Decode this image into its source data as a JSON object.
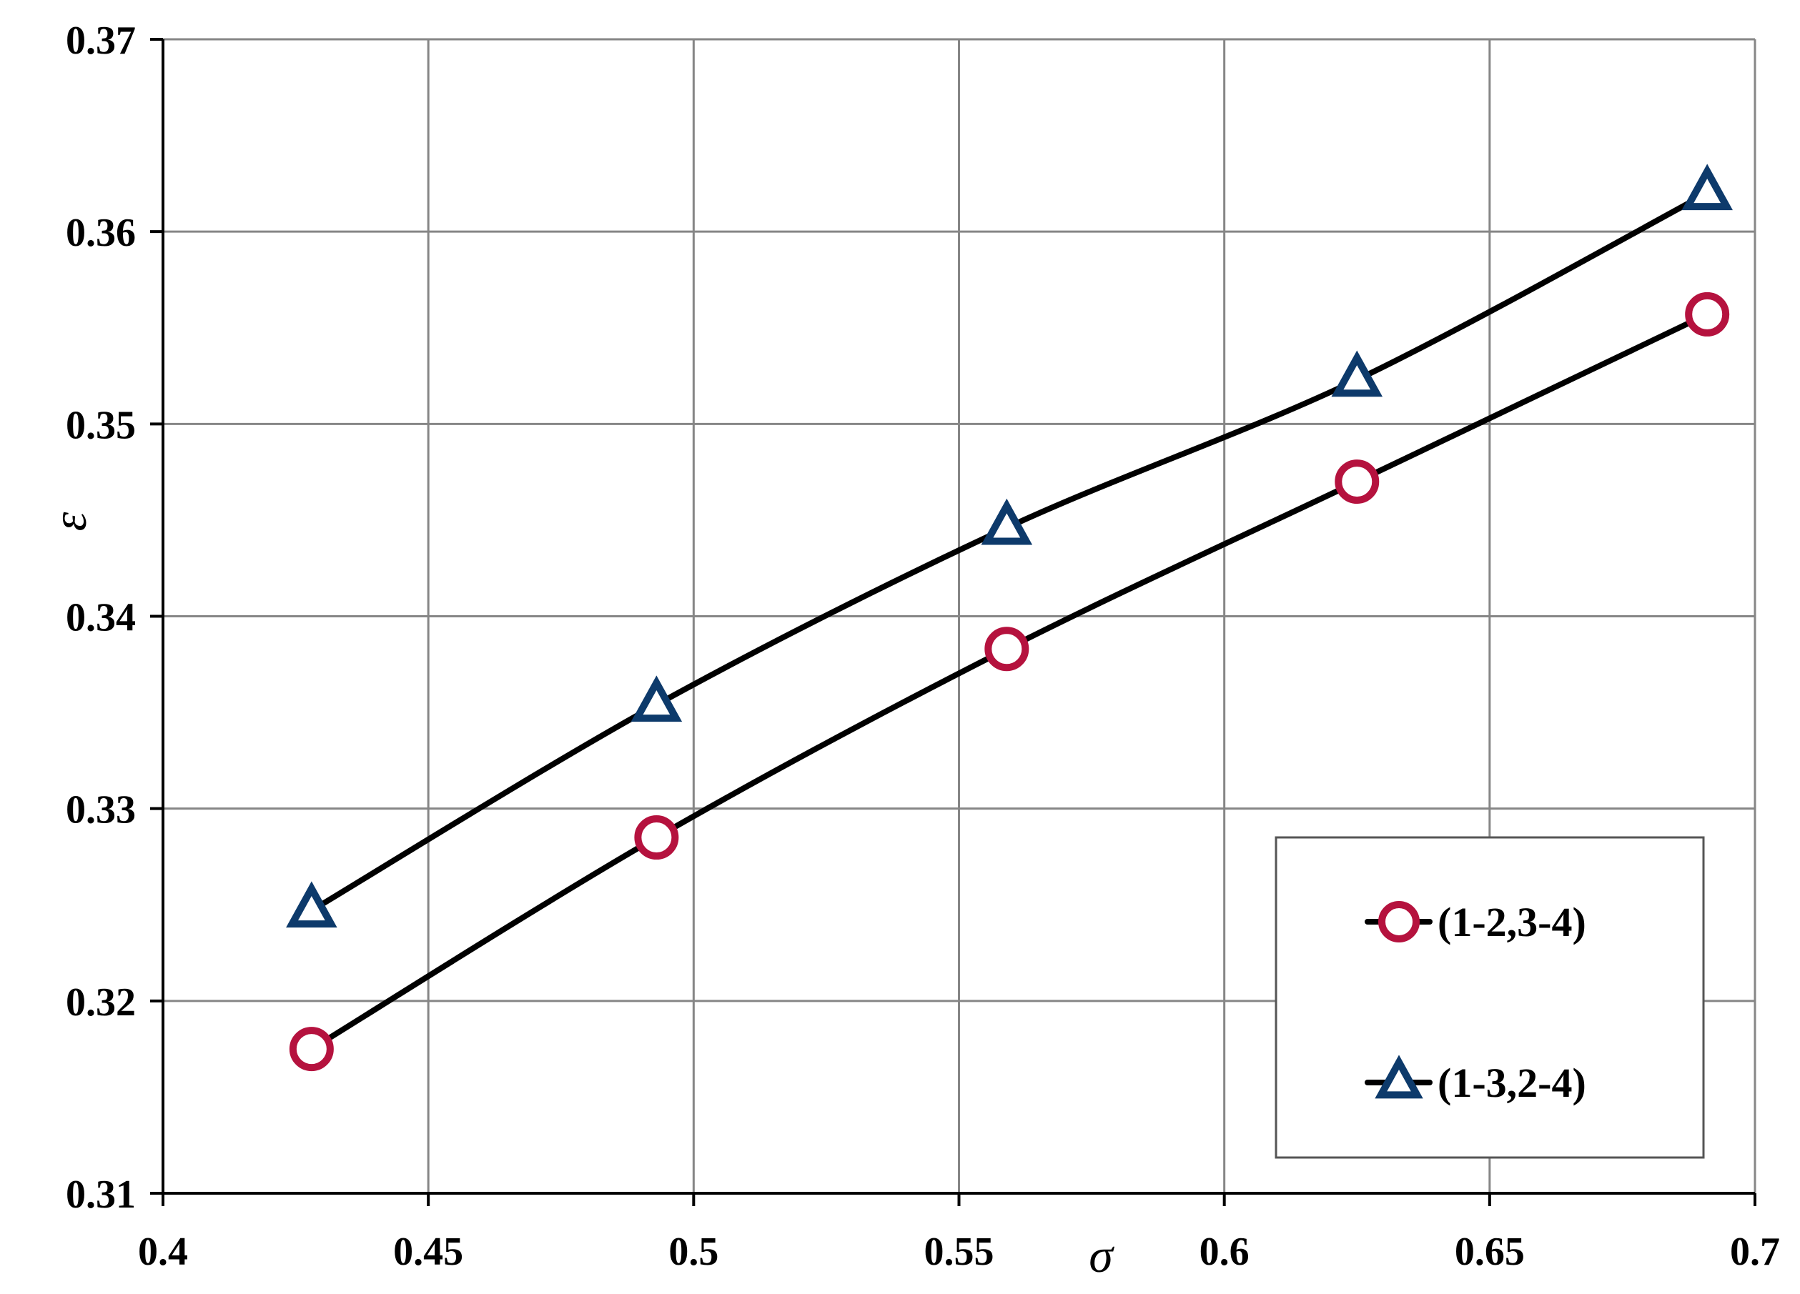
{
  "chart_data": {
    "type": "line",
    "xlabel": "σ",
    "ylabel": "ε",
    "xlim": [
      0.4,
      0.7
    ],
    "ylim": [
      0.31,
      0.37
    ],
    "xticks": [
      0.4,
      0.45,
      0.5,
      0.55,
      0.6,
      0.65,
      0.7
    ],
    "xtick_labels": [
      "0.4",
      "0.45",
      "0.5",
      "0.55",
      "0.6",
      "0.65",
      "0.7"
    ],
    "yticks": [
      0.31,
      0.32,
      0.33,
      0.34,
      0.35,
      0.36,
      0.37
    ],
    "ytick_labels": [
      "0.31",
      "0.32",
      "0.33",
      "0.34",
      "0.35",
      "0.36",
      "0.37"
    ],
    "grid": true,
    "legend_position": "bottom-right",
    "series": [
      {
        "name": "(1-2,3-4)",
        "marker": "circle",
        "marker_color": "#b5123e",
        "line_color": "#000000",
        "x": [
          0.428,
          0.493,
          0.559,
          0.625,
          0.691
        ],
        "y": [
          0.3175,
          0.3285,
          0.3383,
          0.347,
          0.3557
        ]
      },
      {
        "name": "(1-3,2-4)",
        "marker": "triangle",
        "marker_color": "#0d3a6b",
        "line_color": "#000000",
        "x": [
          0.428,
          0.493,
          0.559,
          0.625,
          0.691
        ],
        "y": [
          0.3247,
          0.3354,
          0.3446,
          0.3523,
          0.362
        ]
      }
    ]
  }
}
